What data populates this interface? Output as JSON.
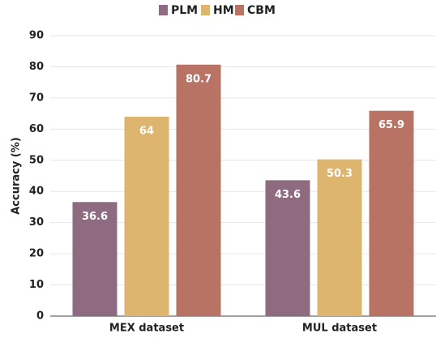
{
  "chart_data": {
    "type": "bar",
    "categories": [
      "MEX dataset",
      "MUL dataset"
    ],
    "series": [
      {
        "name": "PLM",
        "color": "#8e6b80",
        "values": [
          36.6,
          43.6
        ]
      },
      {
        "name": "HM",
        "color": "#deb56e",
        "values": [
          64,
          50.3
        ]
      },
      {
        "name": "CBM",
        "color": "#b87365",
        "values": [
          80.7,
          65.9
        ]
      }
    ],
    "ylabel": "Accuracy (%)",
    "ylim": [
      0,
      90
    ],
    "yticks": [
      0,
      10,
      20,
      30,
      40,
      50,
      60,
      70,
      80,
      90
    ],
    "grid": true,
    "legend": "top"
  }
}
